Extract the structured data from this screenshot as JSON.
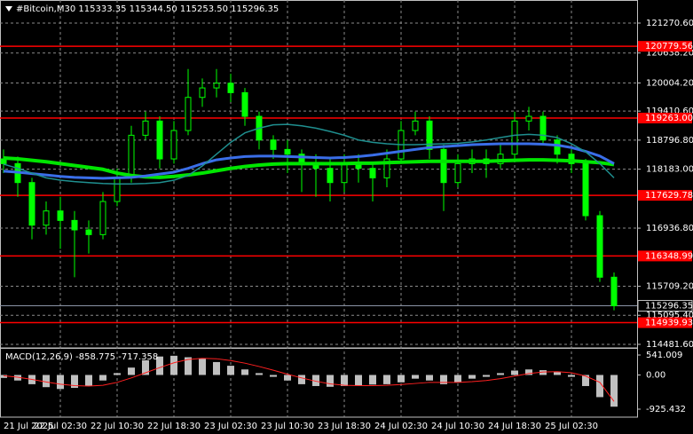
{
  "chart_data": [
    {
      "type": "candlestick",
      "title": "#Bitcoin,M30  115333.35 115344.50 115253.50 115296.35",
      "categories": [
        "21 Jul 2025",
        null,
        null,
        null,
        "22 Jul 02:30",
        null,
        null,
        null,
        "22 Jul 10:30",
        null,
        null,
        null,
        "22 Jul 18:30",
        null,
        null,
        null,
        "23 Jul 02:30",
        null,
        null,
        null,
        "23 Jul 10:30",
        null,
        null,
        null,
        "23 Jul 18:30",
        null,
        null,
        null,
        "24 Jul 02:30",
        null,
        null,
        null,
        "24 Jul 10:30",
        null,
        null,
        null,
        "24 Jul 18:30",
        null,
        null,
        null,
        "25 Jul 02:30",
        null,
        null,
        null
      ],
      "open": [
        118400,
        118300,
        117900,
        117000,
        117300,
        117100,
        116900,
        116800,
        117500,
        118000,
        118900,
        119200,
        118400,
        119000,
        119700,
        119900,
        120000,
        119800,
        119300,
        118800,
        118600,
        118500,
        118300,
        118200,
        117900,
        118300,
        118200,
        118000,
        118400,
        119000,
        119200,
        118600,
        117900,
        118300,
        118400,
        118300,
        118500,
        119200,
        119300,
        118800,
        118500,
        118300,
        117200,
        115900
      ],
      "high": [
        118600,
        118450,
        118000,
        117500,
        117600,
        117300,
        117100,
        117700,
        118200,
        119100,
        119400,
        119300,
        119200,
        120300,
        120100,
        120300,
        120200,
        119900,
        119400,
        118900,
        118800,
        118600,
        118500,
        118400,
        118500,
        118500,
        118300,
        118600,
        119200,
        119400,
        119300,
        118700,
        118500,
        118600,
        118600,
        118700,
        119400,
        119500,
        119400,
        118900,
        118600,
        118400,
        117300,
        116000
      ],
      "low": [
        118100,
        117600,
        116700,
        116800,
        116500,
        115900,
        116400,
        116700,
        117400,
        117900,
        118800,
        118200,
        118300,
        118900,
        119500,
        119700,
        119600,
        119100,
        118600,
        118400,
        118100,
        117700,
        117600,
        117500,
        117700,
        117900,
        117500,
        117800,
        118300,
        118900,
        118400,
        117300,
        117800,
        118100,
        118000,
        118200,
        118400,
        119000,
        118700,
        118300,
        118100,
        117100,
        115800,
        115200
      ],
      "close": [
        118300,
        117900,
        117000,
        117300,
        117100,
        116900,
        116800,
        117500,
        118000,
        118900,
        119200,
        118400,
        119000,
        119700,
        119900,
        120000,
        119800,
        119300,
        118800,
        118600,
        118500,
        118300,
        118200,
        117900,
        118300,
        118200,
        118000,
        118400,
        119000,
        119200,
        118600,
        117900,
        118300,
        118400,
        118300,
        118500,
        119200,
        119300,
        118800,
        118500,
        118300,
        117200,
        115900,
        115296.35
      ],
      "color": "#00ff00",
      "moving_averages": [
        {
          "color": "#00e600",
          "width": 4,
          "values": [
            118420,
            118400,
            118370,
            118340,
            118300,
            118260,
            118220,
            118180,
            118100,
            118050,
            118020,
            118010,
            118030,
            118060,
            118100,
            118150,
            118200,
            118240,
            118270,
            118290,
            118300,
            118300,
            118300,
            118300,
            118300,
            118310,
            118310,
            118320,
            118330,
            118340,
            118350,
            118350,
            118350,
            118350,
            118350,
            118360,
            118370,
            118380,
            118380,
            118370,
            118360,
            118340,
            118320,
            118280
          ]
        },
        {
          "color": "#3a6ee8",
          "width": 3,
          "values": [
            118140,
            118120,
            118090,
            118060,
            118030,
            118010,
            118000,
            117990,
            118000,
            118010,
            118040,
            118080,
            118120,
            118200,
            118300,
            118380,
            118420,
            118450,
            118460,
            118460,
            118450,
            118440,
            118430,
            118420,
            118430,
            118450,
            118480,
            118520,
            118560,
            118600,
            118640,
            118660,
            118680,
            118700,
            118710,
            118720,
            118720,
            118720,
            118710,
            118690,
            118640,
            118560,
            118460,
            118300
          ]
        },
        {
          "color": "#1f8f8f",
          "width": 1.5,
          "values": [
            118290,
            118200,
            118100,
            118000,
            117950,
            117920,
            117900,
            117880,
            117870,
            117870,
            117880,
            117900,
            117950,
            118050,
            118250,
            118500,
            118750,
            118950,
            119050,
            119120,
            119130,
            119100,
            119050,
            118980,
            118900,
            118800,
            118750,
            118720,
            118700,
            118700,
            118710,
            118720,
            118730,
            118760,
            118800,
            118850,
            118900,
            118920,
            118900,
            118850,
            118720,
            118550,
            118300,
            118000
          ]
        }
      ],
      "levels": [
        120779.56,
        {
          "value": 119263,
          "label": "119263.00"
        },
        117629.78,
        116348.99,
        114939.93
      ],
      "level_color": "#ff0000",
      "last_price": 115296.35,
      "ylim": [
        114406,
        121758
      ],
      "yticks": [
        {
          "value": 121270.6,
          "label": "121270.60"
        },
        {
          "value": 120638.2,
          "label": "120638.20"
        },
        {
          "value": 120004.2,
          "label": "120004.20"
        },
        {
          "value": 119410.6,
          "label": "119410.60"
        },
        {
          "value": 118796.8,
          "label": "118796.80"
        },
        {
          "value": 118183,
          "label": "118183.00"
        },
        {
          "value": 116936.8,
          "label": "116936.80"
        },
        {
          "value": 115709.2,
          "label": "115709.20"
        },
        {
          "value": 115095.4,
          "label": "115095.40"
        },
        {
          "value": 114481.6,
          "label": "114481.60"
        }
      ],
      "grid": true
    },
    {
      "type": "macd",
      "title": "MACD(12,26,9) -858.775 -717.358",
      "values": [
        -80,
        -150,
        -250,
        -330,
        -380,
        -350,
        -300,
        -150,
        50,
        200,
        400,
        500,
        520,
        480,
        450,
        350,
        250,
        150,
        50,
        -50,
        -150,
        -250,
        -300,
        -320,
        -300,
        -280,
        -260,
        -250,
        -200,
        -100,
        -150,
        -250,
        -200,
        -100,
        -50,
        50,
        120,
        150,
        130,
        80,
        -50,
        -300,
        -600,
        -858.775
      ],
      "color": "#c0c0c0",
      "signal": [
        -20,
        -60,
        -120,
        -190,
        -250,
        -290,
        -300,
        -280,
        -200,
        -80,
        60,
        200,
        330,
        420,
        450,
        440,
        390,
        320,
        230,
        130,
        20,
        -80,
        -170,
        -240,
        -280,
        -290,
        -290,
        -280,
        -260,
        -230,
        -200,
        -200,
        -200,
        -180,
        -150,
        -100,
        -30,
        40,
        80,
        90,
        60,
        -30,
        -200,
        -717.358
      ],
      "signal_color": "#ff2020",
      "ylim": [
        -1142,
        709
      ],
      "yticks": [
        541.009,
        {
          "value": 0,
          "label": "0.00"
        },
        -925.432
      ]
    }
  ]
}
